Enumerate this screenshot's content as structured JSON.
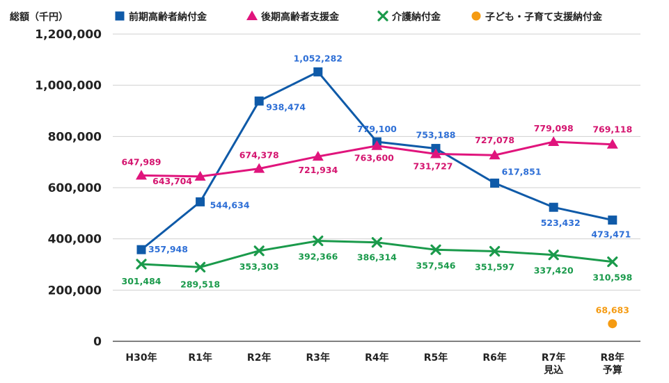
{
  "chart_data": {
    "type": "line",
    "ylabel": "総額（千円）",
    "ylim": [
      0,
      1200000
    ],
    "yticks": [
      "0",
      "200,000",
      "400,000",
      "600,000",
      "800,000",
      "1,000,000",
      "1,200,000"
    ],
    "categories": [
      [
        "H30年"
      ],
      [
        "R1年"
      ],
      [
        "R2年"
      ],
      [
        "R3年"
      ],
      [
        "R4年"
      ],
      [
        "R5年"
      ],
      [
        "R6年"
      ],
      [
        "R7年",
        "見込"
      ],
      [
        "R8年",
        "予算"
      ]
    ],
    "grid": true,
    "legend": "top",
    "series": [
      {
        "name": "前期高齢者納付金",
        "color": "#0f5aa8",
        "label_color": "#2e6fd6",
        "marker": "square",
        "values": [
          357948,
          544634,
          938474,
          1052282,
          779100,
          753188,
          617851,
          523432,
          473471
        ],
        "labels": [
          "357,948",
          "544,634",
          "938,474",
          "1,052,282",
          "779,100",
          "753,188",
          "617,851",
          "523,432",
          "473,471"
        ]
      },
      {
        "name": "後期高齢者支援金",
        "color": "#e0147c",
        "label_color": "#d4146f",
        "marker": "triangle",
        "values": [
          647989,
          643704,
          674378,
          721934,
          763600,
          731727,
          727078,
          779098,
          769118
        ],
        "labels": [
          "647,989",
          "643,704",
          "674,378",
          "721,934",
          "763,600",
          "731,727",
          "727,078",
          "779,098",
          "769,118"
        ]
      },
      {
        "name": "介護納付金",
        "color": "#1a9a4b",
        "label_color": "#1a9a4b",
        "marker": "x",
        "values": [
          301484,
          289518,
          353303,
          392366,
          386314,
          357546,
          351597,
          337420,
          310598
        ],
        "labels": [
          "301,484",
          "289,518",
          "353,303",
          "392,366",
          "386,314",
          "357,546",
          "351,597",
          "337,420",
          "310,598"
        ]
      },
      {
        "name": "子ども・子育て支援納付金",
        "color": "#f59b12",
        "label_color": "#f59b12",
        "marker": "circle",
        "values": [
          null,
          null,
          null,
          null,
          null,
          null,
          null,
          null,
          68683
        ],
        "labels": [
          null,
          null,
          null,
          null,
          null,
          null,
          null,
          null,
          "68,683"
        ]
      }
    ]
  }
}
